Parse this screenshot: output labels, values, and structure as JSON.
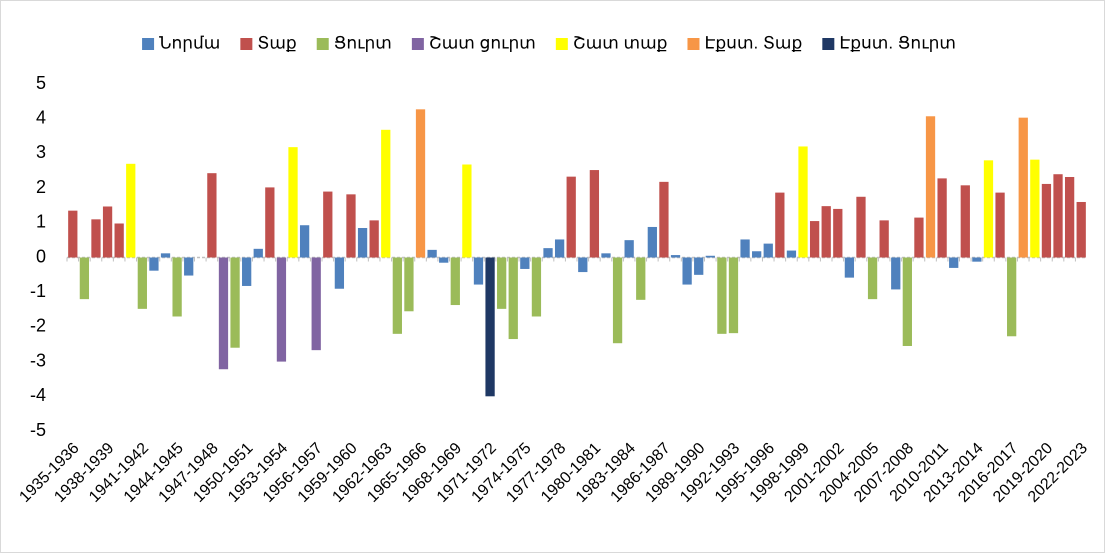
{
  "chart_data": {
    "type": "bar",
    "categories": [
      "1935-1936",
      null,
      null,
      "1938-1939",
      null,
      null,
      "1941-1942",
      null,
      null,
      "1944-1945",
      null,
      null,
      "1947-1948",
      null,
      null,
      "1950-1951",
      null,
      null,
      "1953-1954",
      null,
      null,
      "1956-1957",
      null,
      null,
      "1959-1960",
      null,
      null,
      "1962-1963",
      null,
      null,
      "1965-1966",
      null,
      null,
      "1968-1969",
      null,
      null,
      "1971-1972",
      null,
      null,
      "1974-1975",
      null,
      null,
      "1977-1978",
      null,
      null,
      "1980-1981",
      null,
      null,
      "1983-1984",
      null,
      null,
      "1986-1987",
      null,
      null,
      "1989-1990",
      null,
      null,
      "1992-1993",
      null,
      null,
      "1995-1996",
      null,
      null,
      "1998-1999",
      null,
      null,
      "2001-2002",
      null,
      null,
      "2004-2005",
      null,
      null,
      "2007-2008",
      null,
      null,
      "2010-2011",
      null,
      null,
      "2013-2014",
      null,
      null,
      "2016-2017",
      null,
      null,
      "2019-2020",
      null,
      null,
      "2022-2023"
    ],
    "series": [
      {
        "name": "Նորմա",
        "color": "#4f81bd",
        "values": [
          null,
          null,
          null,
          null,
          null,
          null,
          null,
          -0.38,
          0.12,
          null,
          -0.52,
          0,
          null,
          null,
          null,
          -0.82,
          0.25,
          null,
          null,
          null,
          0.93,
          null,
          null,
          -0.9,
          null,
          0.85,
          null,
          null,
          null,
          null,
          null,
          0.22,
          -0.15,
          null,
          null,
          -0.78,
          null,
          null,
          null,
          -0.33,
          null,
          0.27,
          0.52,
          null,
          -0.42,
          null,
          0.12,
          null,
          0.5,
          null,
          0.88,
          null,
          0.07,
          -0.78,
          -0.5,
          0.05,
          null,
          null,
          0.52,
          0.18,
          0.4,
          null,
          0.2,
          null,
          null,
          null,
          null,
          -0.58,
          null,
          null,
          null,
          -0.92,
          null,
          null,
          null,
          null,
          -0.3,
          null,
          -0.12,
          null,
          null,
          null,
          null,
          null,
          null,
          null,
          null,
          null
        ]
      },
      {
        "name": "Տաք",
        "color": "#c0504d",
        "values": [
          1.35,
          null,
          1.1,
          1.47,
          0.98,
          null,
          null,
          null,
          null,
          null,
          null,
          null,
          2.43,
          null,
          null,
          null,
          null,
          2.02,
          null,
          null,
          null,
          null,
          1.9,
          null,
          1.82,
          null,
          1.07,
          null,
          null,
          null,
          null,
          null,
          null,
          null,
          null,
          null,
          null,
          null,
          null,
          null,
          null,
          null,
          null,
          2.33,
          null,
          2.52,
          null,
          null,
          null,
          null,
          null,
          2.18,
          null,
          null,
          null,
          null,
          null,
          null,
          null,
          null,
          null,
          1.87,
          null,
          null,
          1.05,
          1.48,
          1.4,
          null,
          1.75,
          null,
          1.07,
          null,
          null,
          1.15,
          null,
          2.28,
          null,
          2.08,
          null,
          null,
          1.87,
          null,
          null,
          null,
          2.12,
          2.4,
          2.32,
          1.6
        ]
      },
      {
        "name": "Ցուրտ",
        "color": "#9bbb59",
        "values": [
          null,
          -1.2,
          null,
          null,
          null,
          null,
          -1.48,
          null,
          null,
          -1.7,
          null,
          null,
          null,
          null,
          -2.6,
          null,
          null,
          null,
          null,
          null,
          null,
          null,
          null,
          null,
          null,
          null,
          null,
          null,
          -2.2,
          -1.55,
          null,
          null,
          null,
          -1.37,
          null,
          null,
          null,
          -1.48,
          -2.35,
          null,
          -1.7,
          null,
          null,
          null,
          null,
          null,
          null,
          -2.47,
          null,
          -1.22,
          null,
          null,
          null,
          null,
          null,
          null,
          -2.2,
          -2.18,
          null,
          null,
          null,
          null,
          null,
          null,
          null,
          null,
          null,
          null,
          null,
          -1.2,
          null,
          null,
          -2.55,
          null,
          null,
          null,
          null,
          null,
          null,
          null,
          null,
          -2.27,
          null,
          null,
          null,
          null,
          null,
          null
        ]
      },
      {
        "name": "Շատ ցուրտ",
        "color": "#8064a2",
        "values": [
          null,
          null,
          null,
          null,
          null,
          null,
          null,
          null,
          null,
          null,
          null,
          null,
          null,
          -3.22,
          null,
          null,
          null,
          null,
          -3.0,
          null,
          null,
          -2.67,
          null,
          null,
          null,
          null,
          null,
          null,
          null,
          null,
          null,
          null,
          null,
          null,
          null,
          null,
          null,
          null,
          null,
          null,
          null,
          null,
          null,
          null,
          null,
          null,
          null,
          null,
          null,
          null,
          null,
          null,
          null,
          null,
          null,
          null,
          null,
          null,
          null,
          null,
          null,
          null,
          null,
          null,
          null,
          null,
          null,
          null,
          null,
          null,
          null,
          null,
          null,
          null,
          null,
          null,
          null,
          null,
          null,
          null,
          null,
          null,
          null,
          null,
          null,
          null,
          null,
          null
        ]
      },
      {
        "name": "Շատ տաք",
        "color": "#ffff00",
        "values": [
          null,
          null,
          null,
          null,
          null,
          2.7,
          null,
          null,
          null,
          null,
          null,
          null,
          null,
          null,
          null,
          null,
          null,
          null,
          null,
          3.18,
          null,
          null,
          null,
          null,
          null,
          null,
          null,
          3.68,
          null,
          null,
          null,
          null,
          null,
          null,
          2.68,
          null,
          null,
          null,
          null,
          null,
          null,
          null,
          null,
          null,
          null,
          null,
          null,
          null,
          null,
          null,
          null,
          null,
          null,
          null,
          null,
          null,
          null,
          null,
          null,
          null,
          null,
          null,
          null,
          3.2,
          null,
          null,
          null,
          null,
          null,
          null,
          null,
          null,
          null,
          null,
          null,
          null,
          null,
          null,
          null,
          2.8,
          null,
          null,
          null,
          2.82,
          null,
          null,
          null,
          null
        ]
      },
      {
        "name": "Էքստ. Տաք",
        "color": "#f79646",
        "values": [
          null,
          null,
          null,
          null,
          null,
          null,
          null,
          null,
          null,
          null,
          null,
          null,
          null,
          null,
          null,
          null,
          null,
          null,
          null,
          null,
          null,
          null,
          null,
          null,
          null,
          null,
          null,
          null,
          null,
          null,
          4.27,
          null,
          null,
          null,
          null,
          null,
          null,
          null,
          null,
          null,
          null,
          null,
          null,
          null,
          null,
          null,
          null,
          null,
          null,
          null,
          null,
          null,
          null,
          null,
          null,
          null,
          null,
          null,
          null,
          null,
          null,
          null,
          null,
          null,
          null,
          null,
          null,
          null,
          null,
          null,
          null,
          null,
          null,
          null,
          4.07,
          null,
          null,
          null,
          null,
          null,
          null,
          null,
          4.03,
          null,
          null,
          null,
          null,
          null
        ]
      },
      {
        "name": "Էքստ. Ցուրտ",
        "color": "#1f3864",
        "values": [
          null,
          null,
          null,
          null,
          null,
          null,
          null,
          null,
          null,
          null,
          null,
          null,
          null,
          null,
          null,
          null,
          null,
          null,
          null,
          null,
          null,
          null,
          null,
          null,
          null,
          null,
          null,
          null,
          null,
          null,
          null,
          null,
          null,
          null,
          null,
          null,
          -4.0,
          null,
          null,
          null,
          null,
          null,
          null,
          null,
          null,
          null,
          null,
          null,
          null,
          null,
          null,
          null,
          null,
          null,
          null,
          null,
          null,
          null,
          null,
          null,
          null,
          null,
          null,
          null,
          null,
          null,
          null,
          null,
          null,
          null,
          null,
          null,
          null,
          null,
          null,
          null,
          null,
          null,
          null,
          null,
          null,
          null,
          null,
          null,
          null,
          null,
          null,
          null
        ]
      }
    ],
    "ylim": [
      -5,
      5
    ],
    "yticks": [
      -5,
      -4,
      -3,
      -2,
      -1,
      0,
      1,
      2,
      3,
      4,
      5
    ],
    "legend": "top"
  }
}
